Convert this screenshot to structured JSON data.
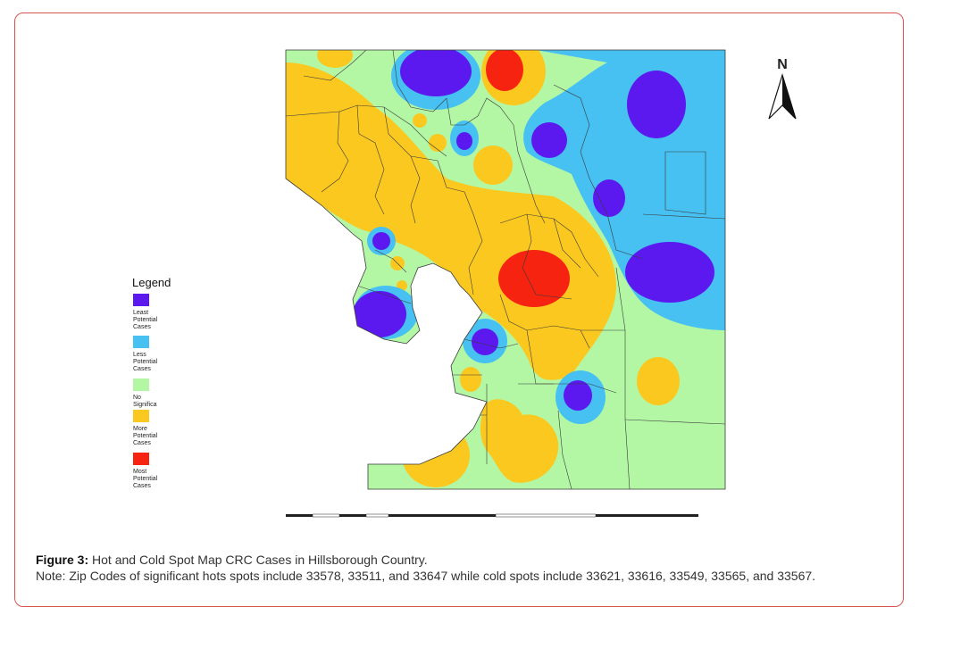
{
  "figure": {
    "caption_label": "Figure 3:",
    "caption_title": " Hot and Cold Spot Map CRC Cases in Hillsborough Country.",
    "note": "Note: Zip Codes of significant hots spots include 33578, 33511, and 33647 while cold spots include 33621, 33616, 33549, 33565, and 33567."
  },
  "legend": {
    "title": "Legend",
    "items": [
      {
        "label_lines": [
          "Least",
          "Potential",
          "Cases"
        ],
        "color": "#5b19ef"
      },
      {
        "label_lines": [
          "Less",
          "Potential",
          "Cases"
        ],
        "color": "#46c1f2"
      },
      {
        "label_lines": [
          "No",
          "Significa"
        ],
        "color": "#b3f7a5"
      },
      {
        "label_lines": [
          "More",
          "Potential",
          "Cases"
        ],
        "color": "#fbc81f"
      },
      {
        "label_lines": [
          "Most",
          "Potential",
          "Cases"
        ],
        "color": "#f5230f"
      }
    ]
  },
  "north_arrow": {
    "label": "N"
  },
  "colors": {
    "land": "#b3f7a5",
    "water": "#ffffff",
    "boundary": "#3a3a3a",
    "card_border": "#d9534f"
  }
}
